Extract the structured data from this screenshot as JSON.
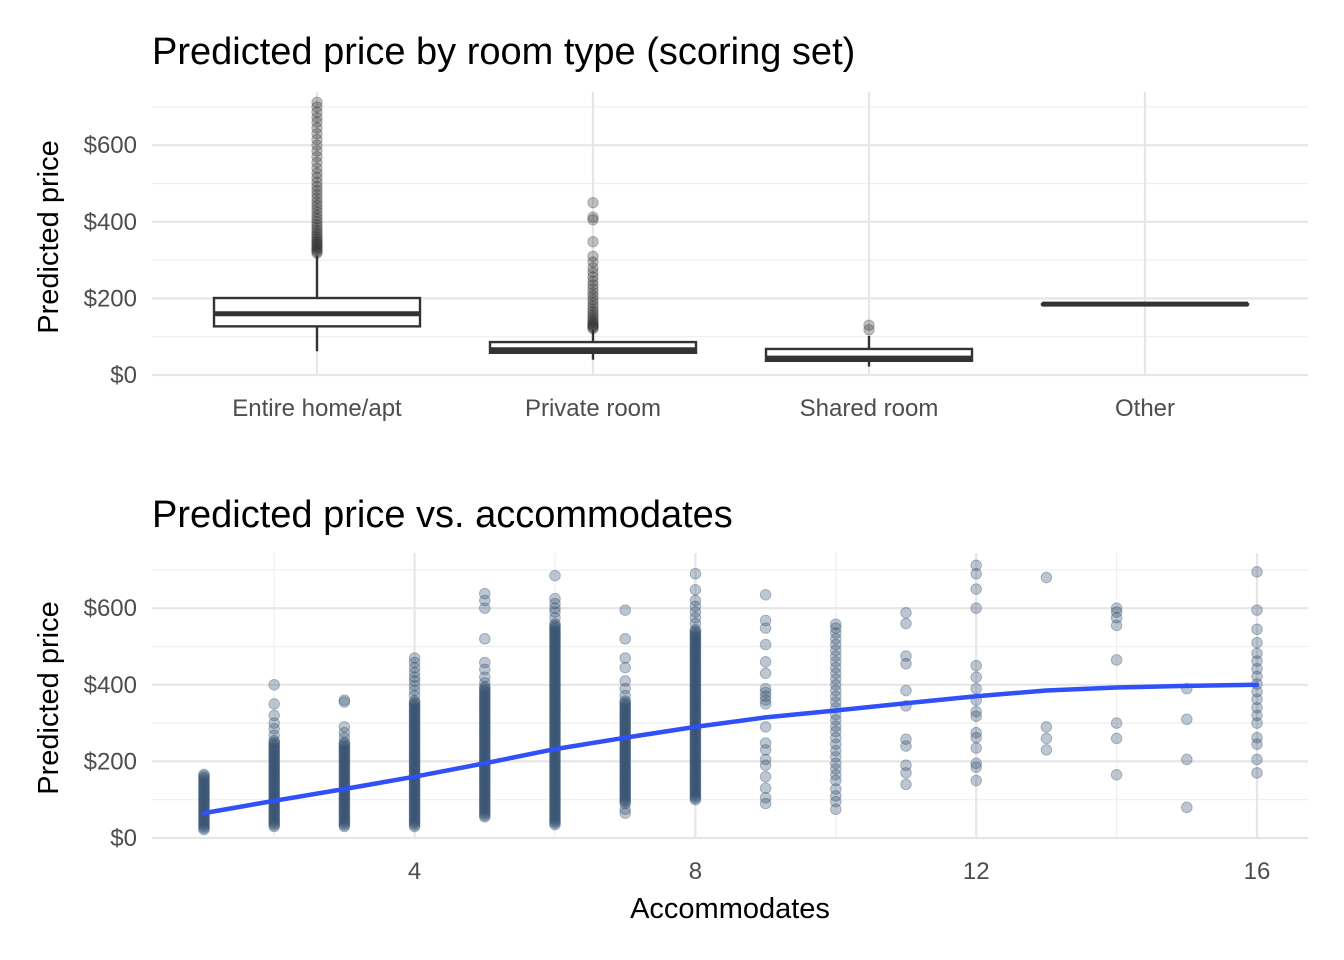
{
  "chart_data": [
    {
      "type": "box",
      "title": "Predicted price by room type (scoring set)",
      "xlabel": "",
      "ylabel": "Predicted price",
      "ylim": [
        0,
        720
      ],
      "y_ticks": [
        0,
        200,
        400,
        600
      ],
      "y_tick_labels": [
        "$0",
        "$200",
        "$400",
        "$600"
      ],
      "categories": [
        "Entire home/apt",
        "Private room",
        "Shared room",
        "Other"
      ],
      "boxes": [
        {
          "category": "Entire home/apt",
          "min": 62,
          "q1": 127,
          "median": 160,
          "q3": 201,
          "max": 312,
          "outliers": [
            318,
            322,
            326,
            330,
            334,
            338,
            342,
            346,
            350,
            355,
            360,
            366,
            372,
            378,
            385,
            392,
            400,
            408,
            416,
            425,
            434,
            443,
            452,
            462,
            472,
            482,
            492,
            503,
            515,
            527,
            540,
            555,
            570,
            585,
            600,
            615,
            630,
            645,
            660,
            672,
            686,
            700,
            712
          ]
        },
        {
          "category": "Private room",
          "min": 40,
          "q1": 58,
          "median": 66,
          "q3": 86,
          "max": 118,
          "outliers": [
            121,
            124,
            127,
            130,
            133,
            137,
            141,
            146,
            152,
            158,
            165,
            172,
            180,
            188,
            197,
            206,
            215,
            225,
            235,
            245,
            256,
            268,
            280,
            295,
            310,
            348,
            405,
            412,
            450
          ]
        },
        {
          "category": "Shared room",
          "min": 22,
          "q1": 37,
          "median": 44,
          "q3": 68,
          "max": 102,
          "outliers": [
            118,
            130
          ]
        },
        {
          "category": "Other",
          "min": 185,
          "q1": 185,
          "median": 185,
          "q3": 185,
          "max": 185,
          "outliers": []
        }
      ]
    },
    {
      "type": "scatter",
      "title": "Predicted price vs. accommodates",
      "xlabel": "Accommodates",
      "ylabel": "Predicted price",
      "xlim": [
        0.2,
        16.7
      ],
      "ylim": [
        0,
        720
      ],
      "x_ticks": [
        4,
        8,
        12,
        16
      ],
      "x_tick_labels": [
        "4",
        "8",
        "12",
        "16"
      ],
      "y_ticks": [
        0,
        200,
        400,
        600
      ],
      "y_tick_labels": [
        "$0",
        "$200",
        "$400",
        "$600"
      ],
      "point_color": "#34506f",
      "smooth_color": "#3050f8",
      "columns": [
        {
          "x": 1,
          "dense": [
            22,
            168
          ],
          "points": []
        },
        {
          "x": 2,
          "dense": [
            30,
            255
          ],
          "points": [
            268,
            285,
            300,
            320,
            350,
            400
          ]
        },
        {
          "x": 3,
          "dense": [
            30,
            250
          ],
          "points": [
            262,
            275,
            290,
            355,
            360
          ]
        },
        {
          "x": 4,
          "dense": [
            30,
            360
          ],
          "points": [
            372,
            385,
            398,
            410,
            420,
            432,
            445,
            458,
            470
          ]
        },
        {
          "x": 5,
          "dense": [
            55,
            395
          ],
          "points": [
            405,
            420,
            440,
            458,
            520,
            600,
            620,
            638
          ]
        },
        {
          "x": 6,
          "dense": [
            35,
            560
          ],
          "points": [
            575,
            590,
            600,
            612,
            625,
            685
          ]
        },
        {
          "x": 7,
          "dense": [
            90,
            360
          ],
          "points": [
            65,
            75,
            372,
            390,
            410,
            445,
            470,
            520,
            595
          ]
        },
        {
          "x": 8,
          "dense": [
            100,
            545
          ],
          "points": [
            560,
            575,
            590,
            605,
            620,
            648,
            690
          ]
        },
        {
          "x": 9,
          "dense": [],
          "points": [
            90,
            105,
            130,
            160,
            190,
            205,
            230,
            248,
            290,
            350,
            360,
            370,
            380,
            390,
            430,
            460,
            505,
            548,
            568,
            635
          ]
        },
        {
          "x": 10,
          "dense": [],
          "points": [
            75,
            95,
            110,
            128,
            150,
            165,
            180,
            195,
            212,
            228,
            245,
            262,
            278,
            292,
            308,
            322,
            340,
            355,
            370,
            385,
            400,
            415,
            430,
            445,
            460,
            475,
            490,
            505,
            520,
            535,
            548,
            558
          ]
        },
        {
          "x": 11,
          "dense": [],
          "points": [
            140,
            170,
            190,
            240,
            258,
            345,
            385,
            455,
            475,
            560,
            588
          ]
        },
        {
          "x": 12,
          "dense": [],
          "points": [
            150,
            185,
            195,
            235,
            262,
            275,
            318,
            330,
            360,
            390,
            420,
            450,
            600,
            650,
            690,
            712
          ]
        },
        {
          "x": 13,
          "dense": [],
          "points": [
            230,
            260,
            290,
            680
          ]
        },
        {
          "x": 14,
          "dense": [],
          "points": [
            165,
            260,
            300,
            465,
            555,
            575,
            590,
            600
          ]
        },
        {
          "x": 15,
          "dense": [],
          "points": [
            80,
            205,
            310,
            390
          ]
        },
        {
          "x": 16,
          "dense": [],
          "points": [
            170,
            205,
            245,
            262,
            300,
            320,
            340,
            362,
            382,
            402,
            422,
            442,
            462,
            482,
            510,
            545,
            595,
            695
          ]
        }
      ],
      "smooth": {
        "x": [
          1,
          2,
          3,
          4,
          5,
          6,
          7,
          8,
          9,
          10,
          11,
          12,
          13,
          14,
          15,
          16
        ],
        "y": [
          65,
          97,
          128,
          160,
          195,
          232,
          262,
          290,
          315,
          333,
          352,
          370,
          385,
          393,
          397,
          400
        ]
      }
    }
  ]
}
